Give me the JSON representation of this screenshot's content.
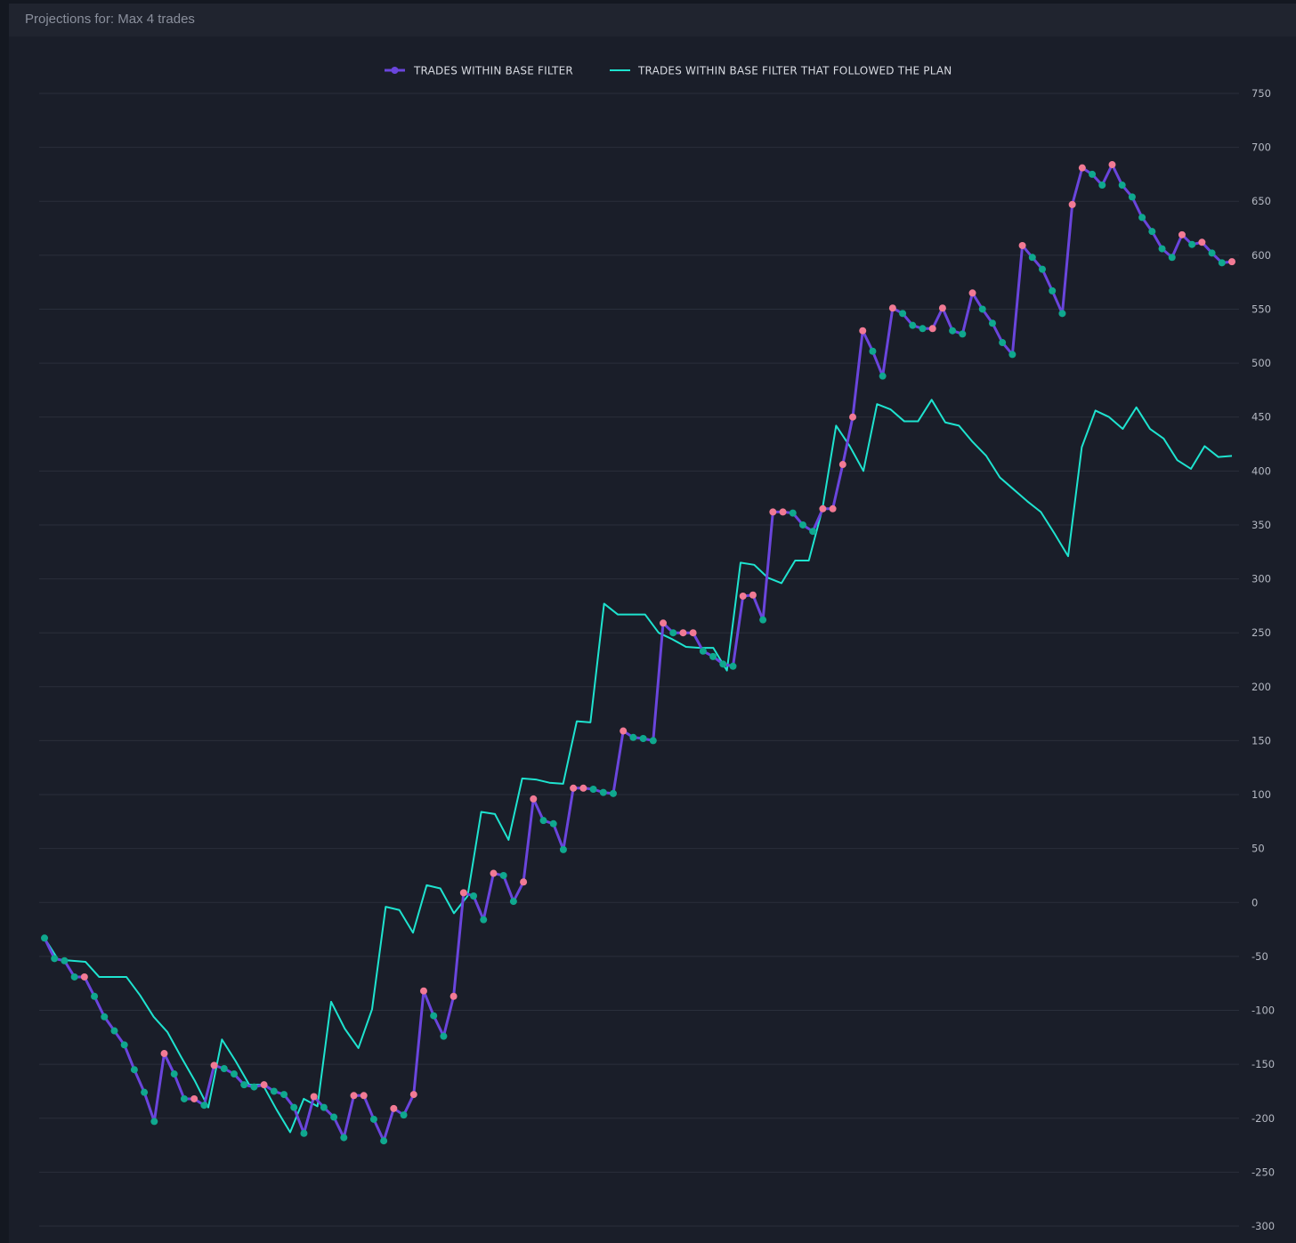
{
  "header": {
    "title": "Projections for: Max 4 trades"
  },
  "colors": {
    "page_bg": "#141821",
    "panel_bg": "#1a1e29",
    "header_bg": "#20242f",
    "grid": "#2a2f3b",
    "series_purple": "#6a45dc",
    "series_cyan": "#1ee3cf",
    "marker_green": "#0fa88e",
    "marker_pink": "#f27a94"
  },
  "chart_data": {
    "type": "line",
    "title": "",
    "xlabel": "",
    "ylabel": "",
    "ylim": [
      -300,
      750
    ],
    "yticks": [
      750,
      700,
      650,
      600,
      550,
      500,
      450,
      400,
      350,
      300,
      250,
      200,
      150,
      100,
      50,
      0,
      -50,
      -100,
      -150,
      -200,
      -250,
      -300
    ],
    "y_axis_position": "right",
    "grid": true,
    "legend_position": "top-center",
    "legend": [
      {
        "label": "TRADES WITHIN BASE FILTER",
        "style": "line-with-marker",
        "color": "#6a45dc"
      },
      {
        "label": "TRADES WITHIN BASE FILTER THAT FOLLOWED THE PLAN",
        "style": "line",
        "color": "#1ee3cf"
      }
    ],
    "series": [
      {
        "name": "TRADES WITHIN BASE FILTER",
        "color": "#6a45dc",
        "line_width": 3,
        "markers": true,
        "win_color": "#0fa88e",
        "loss_color": "#f27a94",
        "values": [
          -33,
          -52,
          -54,
          -69,
          -69,
          -87,
          -106,
          -119,
          -132,
          -155,
          -176,
          -203,
          -140,
          -159,
          -182,
          -182,
          -188,
          -151,
          -154,
          -159,
          -169,
          -171,
          -169,
          -175,
          -178,
          -190,
          -214,
          -180,
          -190,
          -199,
          -218,
          -179,
          -179,
          -201,
          -221,
          -191,
          -197,
          -178,
          -82,
          -105,
          -124,
          -87,
          9,
          6,
          -16,
          27,
          25,
          1,
          19,
          96,
          76,
          73,
          49,
          106,
          106,
          105,
          102,
          101,
          159,
          153,
          152,
          150,
          259,
          250,
          250,
          250,
          233,
          228,
          221,
          219,
          284,
          285,
          262,
          362,
          362,
          361,
          350,
          344,
          365,
          365,
          406,
          450,
          530,
          511,
          488,
          551,
          546,
          535,
          532,
          532,
          551,
          530,
          527,
          565,
          550,
          537,
          519,
          508,
          609,
          598,
          587,
          567,
          546,
          647,
          681,
          675,
          665,
          684,
          665,
          654,
          635,
          622,
          606,
          598,
          619,
          610,
          612,
          602,
          593,
          594
        ]
      },
      {
        "name": "TRADES WITHIN BASE FILTER THAT FOLLOWED THE PLAN",
        "color": "#1ee3cf",
        "line_width": 2,
        "markers": false,
        "values": [
          -33,
          -53,
          -54,
          -55,
          -69,
          -69,
          -69,
          -86,
          -106,
          -120,
          -143,
          -165,
          -190,
          -127,
          -147,
          -169,
          -169,
          -192,
          -213,
          -182,
          -189,
          -92,
          -117,
          -135,
          -99,
          -4,
          -7,
          -28,
          16,
          13,
          -10,
          6,
          84,
          82,
          58,
          115,
          114,
          111,
          110,
          168,
          167,
          277,
          267,
          267,
          267,
          250,
          244,
          237,
          236,
          236,
          215,
          315,
          313,
          301,
          296,
          317,
          317,
          365,
          442,
          423,
          400,
          462,
          457,
          446,
          446,
          466,
          445,
          442,
          427,
          414,
          394,
          383,
          372,
          362,
          342,
          321,
          422,
          456,
          450,
          439,
          459,
          439,
          430,
          410,
          402,
          423,
          413,
          414
        ]
      }
    ]
  }
}
